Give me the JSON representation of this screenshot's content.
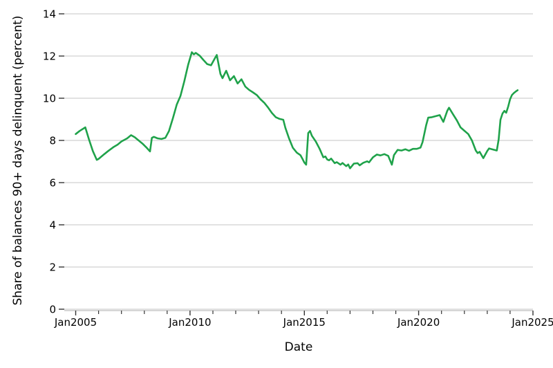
{
  "chart_data": {
    "type": "line",
    "title": "",
    "xlabel": "Date",
    "ylabel": "Share of balances 90+ days delinquent (percent)",
    "legend": "none",
    "background_color": "#ffffff",
    "grid": {
      "horizontal": true,
      "vertical": false,
      "color": "#d9d9d9"
    },
    "axis_line_color": "#c9c9c9",
    "tick_color": "#333333",
    "line": {
      "color": "#1fa24a",
      "width": 2.6
    },
    "x_axis": {
      "unit": "decimal year",
      "xlim": [
        2004.5,
        2025
      ],
      "major_ticks": [
        {
          "year": 2005,
          "label": "Jan2005"
        },
        {
          "year": 2010,
          "label": "Jan2010"
        },
        {
          "year": 2015,
          "label": "Jan2015"
        },
        {
          "year": 2020,
          "label": "Jan2020"
        },
        {
          "year": 2025,
          "label": "Jan2025"
        }
      ],
      "minor_tick_years": [
        2006,
        2007,
        2008,
        2009,
        2011,
        2012,
        2013,
        2014,
        2016,
        2017,
        2018,
        2019,
        2021,
        2022,
        2023,
        2024
      ]
    },
    "y_axis": {
      "ylim": [
        0,
        14
      ],
      "ticks": [
        0,
        2,
        4,
        6,
        8,
        10,
        12,
        14
      ]
    },
    "series": [
      {
        "name": "Share of balances 90+ days delinquent (percent)",
        "x": [
          2005.0,
          2005.17,
          2005.42,
          2005.58,
          2005.75,
          2005.92,
          2006.0,
          2006.25,
          2006.42,
          2006.67,
          2006.83,
          2007.0,
          2007.25,
          2007.42,
          2007.58,
          2007.75,
          2007.92,
          2008.08,
          2008.25,
          2008.33,
          2008.42,
          2008.58,
          2008.75,
          2008.92,
          2009.08,
          2009.25,
          2009.42,
          2009.58,
          2009.75,
          2009.92,
          2010.08,
          2010.17,
          2010.25,
          2010.42,
          2010.58,
          2010.75,
          2010.92,
          2011.08,
          2011.17,
          2011.33,
          2011.42,
          2011.58,
          2011.75,
          2011.92,
          2012.08,
          2012.25,
          2012.42,
          2012.58,
          2012.75,
          2012.92,
          2013.08,
          2013.25,
          2013.42,
          2013.58,
          2013.75,
          2013.92,
          2014.08,
          2014.17,
          2014.33,
          2014.5,
          2014.67,
          2014.83,
          2014.92,
          2015.0,
          2015.08,
          2015.17,
          2015.25,
          2015.33,
          2015.5,
          2015.67,
          2015.83,
          2015.92,
          2016.0,
          2016.08,
          2016.17,
          2016.33,
          2016.42,
          2016.58,
          2016.67,
          2016.83,
          2016.92,
          2017.0,
          2017.17,
          2017.33,
          2017.42,
          2017.58,
          2017.75,
          2017.83,
          2018.0,
          2018.17,
          2018.33,
          2018.5,
          2018.67,
          2018.83,
          2018.92,
          2019.08,
          2019.25,
          2019.42,
          2019.58,
          2019.75,
          2019.92,
          2020.08,
          2020.17,
          2020.33,
          2020.42,
          2020.58,
          2020.75,
          2020.92,
          2021.08,
          2021.25,
          2021.33,
          2021.5,
          2021.67,
          2021.83,
          2022.0,
          2022.17,
          2022.33,
          2022.5,
          2022.58,
          2022.67,
          2022.83,
          2023.0,
          2023.08,
          2023.25,
          2023.42,
          2023.5,
          2023.58,
          2023.67,
          2023.75,
          2023.83,
          2023.92,
          2024.0,
          2024.08,
          2024.17,
          2024.25,
          2024.33
        ],
        "y": [
          8.3,
          8.45,
          8.62,
          8.05,
          7.5,
          7.08,
          7.12,
          7.35,
          7.5,
          7.7,
          7.8,
          7.95,
          8.1,
          8.25,
          8.15,
          8.0,
          7.85,
          7.68,
          7.48,
          8.12,
          8.17,
          8.1,
          8.07,
          8.12,
          8.45,
          9.05,
          9.7,
          10.1,
          10.8,
          11.6,
          12.18,
          12.08,
          12.15,
          12.02,
          11.82,
          11.62,
          11.56,
          11.88,
          12.05,
          11.15,
          10.95,
          11.3,
          10.85,
          11.05,
          10.7,
          10.9,
          10.55,
          10.4,
          10.28,
          10.15,
          9.95,
          9.78,
          9.55,
          9.3,
          9.1,
          9.02,
          8.98,
          8.6,
          8.1,
          7.65,
          7.42,
          7.3,
          7.12,
          6.95,
          6.85,
          8.35,
          8.45,
          8.22,
          7.95,
          7.6,
          7.2,
          7.24,
          7.1,
          7.06,
          7.14,
          6.92,
          6.97,
          6.85,
          6.93,
          6.78,
          6.86,
          6.68,
          6.9,
          6.92,
          6.82,
          6.94,
          7.01,
          6.96,
          7.2,
          7.33,
          7.29,
          7.35,
          7.27,
          6.85,
          7.3,
          7.55,
          7.52,
          7.58,
          7.51,
          7.6,
          7.6,
          7.66,
          7.92,
          8.72,
          9.08,
          9.1,
          9.15,
          9.2,
          8.88,
          9.4,
          9.55,
          9.25,
          8.95,
          8.62,
          8.46,
          8.3,
          8.0,
          7.52,
          7.4,
          7.46,
          7.16,
          7.5,
          7.62,
          7.57,
          7.52,
          8.05,
          8.98,
          9.28,
          9.4,
          9.31,
          9.62,
          9.95,
          10.15,
          10.25,
          10.32,
          10.38
        ]
      }
    ]
  }
}
